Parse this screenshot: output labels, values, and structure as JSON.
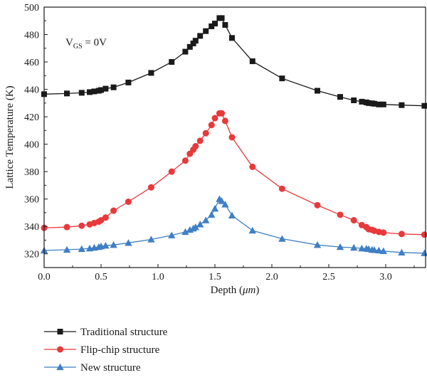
{
  "chart_data": {
    "type": "line",
    "xlabel_main": "Depth (",
    "xlabel_unit": "μm",
    "xlabel_close": ")",
    "ylabel": "Lattice Temperature (K)",
    "annotation": {
      "main": "V",
      "sub": "GS",
      "rest": " = 0V"
    },
    "xlim": [
      0,
      3.35
    ],
    "ylim": [
      310,
      500
    ],
    "xticks": [
      0.0,
      0.5,
      1.0,
      1.5,
      2.0,
      2.5,
      3.0
    ],
    "xtick_labels": [
      "0.0",
      "0.5",
      "1.0",
      "1.5",
      "2.0",
      "2.5",
      "3.0"
    ],
    "yticks": [
      320,
      340,
      360,
      380,
      400,
      420,
      440,
      460,
      480,
      500
    ],
    "ytick_labels": [
      "320",
      "340",
      "360",
      "380",
      "400",
      "420",
      "440",
      "460",
      "480",
      "500"
    ],
    "legend_placement": "below-plot",
    "series": [
      {
        "name": "Traditional structure",
        "color": "#1a1a1a",
        "marker": "square",
        "points": [
          [
            0.0,
            436.5
          ],
          [
            0.2,
            437.0
          ],
          [
            0.33,
            437.5
          ],
          [
            0.4,
            438.0
          ],
          [
            0.44,
            438.5
          ],
          [
            0.48,
            439.0
          ],
          [
            0.5,
            439.5
          ],
          [
            0.54,
            440.5
          ],
          [
            0.61,
            441.5
          ],
          [
            0.74,
            445.0
          ],
          [
            0.94,
            452.0
          ],
          [
            1.12,
            460.0
          ],
          [
            1.24,
            467.5
          ],
          [
            1.28,
            471.0
          ],
          [
            1.31,
            473.5
          ],
          [
            1.33,
            475.5
          ],
          [
            1.37,
            479.0
          ],
          [
            1.42,
            482.5
          ],
          [
            1.47,
            486.0
          ],
          [
            1.5,
            488.0
          ],
          [
            1.54,
            492.0
          ],
          [
            1.56,
            492.0
          ],
          [
            1.59,
            487.0
          ],
          [
            1.65,
            477.5
          ],
          [
            1.83,
            460.5
          ],
          [
            2.09,
            448.0
          ],
          [
            2.4,
            439.0
          ],
          [
            2.6,
            434.5
          ],
          [
            2.72,
            432.0
          ],
          [
            2.79,
            431.0
          ],
          [
            2.83,
            430.5
          ],
          [
            2.85,
            430.0
          ],
          [
            2.88,
            429.8
          ],
          [
            2.9,
            429.5
          ],
          [
            2.94,
            429.0
          ],
          [
            2.98,
            429.0
          ],
          [
            3.14,
            428.5
          ],
          [
            3.34,
            428.0
          ]
        ]
      },
      {
        "name": "Flip-chip structure",
        "color": "#e8393b",
        "marker": "circle",
        "points": [
          [
            0.0,
            339.0
          ],
          [
            0.2,
            339.5
          ],
          [
            0.33,
            340.5
          ],
          [
            0.4,
            341.5
          ],
          [
            0.44,
            342.5
          ],
          [
            0.48,
            343.5
          ],
          [
            0.5,
            344.5
          ],
          [
            0.54,
            346.5
          ],
          [
            0.61,
            351.5
          ],
          [
            0.74,
            358.0
          ],
          [
            0.94,
            368.5
          ],
          [
            1.12,
            380.0
          ],
          [
            1.24,
            388.0
          ],
          [
            1.28,
            393.0
          ],
          [
            1.31,
            396.0
          ],
          [
            1.33,
            398.5
          ],
          [
            1.37,
            402.5
          ],
          [
            1.42,
            408.0
          ],
          [
            1.47,
            414.0
          ],
          [
            1.5,
            419.0
          ],
          [
            1.54,
            422.5
          ],
          [
            1.56,
            422.5
          ],
          [
            1.59,
            417.0
          ],
          [
            1.65,
            405.0
          ],
          [
            1.83,
            383.5
          ],
          [
            2.09,
            367.5
          ],
          [
            2.4,
            355.5
          ],
          [
            2.6,
            348.5
          ],
          [
            2.72,
            344.5
          ],
          [
            2.79,
            341.0
          ],
          [
            2.83,
            339.5
          ],
          [
            2.85,
            338.0
          ],
          [
            2.88,
            337.5
          ],
          [
            2.9,
            336.8
          ],
          [
            2.94,
            336.0
          ],
          [
            2.98,
            335.5
          ],
          [
            3.14,
            334.5
          ],
          [
            3.34,
            334.0
          ]
        ]
      },
      {
        "name": "New structure",
        "color": "#3f7fc6",
        "marker": "triangle",
        "points": [
          [
            0.0,
            322.5
          ],
          [
            0.2,
            323.0
          ],
          [
            0.33,
            323.5
          ],
          [
            0.4,
            324.0
          ],
          [
            0.44,
            324.5
          ],
          [
            0.48,
            325.0
          ],
          [
            0.5,
            325.5
          ],
          [
            0.54,
            326.0
          ],
          [
            0.61,
            326.5
          ],
          [
            0.74,
            328.0
          ],
          [
            0.94,
            330.5
          ],
          [
            1.12,
            333.5
          ],
          [
            1.24,
            336.0
          ],
          [
            1.28,
            337.5
          ],
          [
            1.31,
            338.5
          ],
          [
            1.33,
            339.5
          ],
          [
            1.37,
            341.5
          ],
          [
            1.42,
            344.5
          ],
          [
            1.47,
            348.5
          ],
          [
            1.5,
            353.0
          ],
          [
            1.54,
            360.0
          ],
          [
            1.56,
            358.5
          ],
          [
            1.59,
            356.0
          ],
          [
            1.65,
            348.0
          ],
          [
            1.83,
            337.0
          ],
          [
            2.09,
            331.0
          ],
          [
            2.4,
            326.5
          ],
          [
            2.6,
            325.0
          ],
          [
            2.72,
            324.5
          ],
          [
            2.79,
            324.0
          ],
          [
            2.83,
            323.8
          ],
          [
            2.85,
            323.5
          ],
          [
            2.88,
            323.0
          ],
          [
            2.9,
            322.8
          ],
          [
            2.94,
            322.5
          ],
          [
            2.98,
            322.0
          ],
          [
            3.14,
            321.0
          ],
          [
            3.34,
            320.5
          ]
        ]
      }
    ]
  }
}
